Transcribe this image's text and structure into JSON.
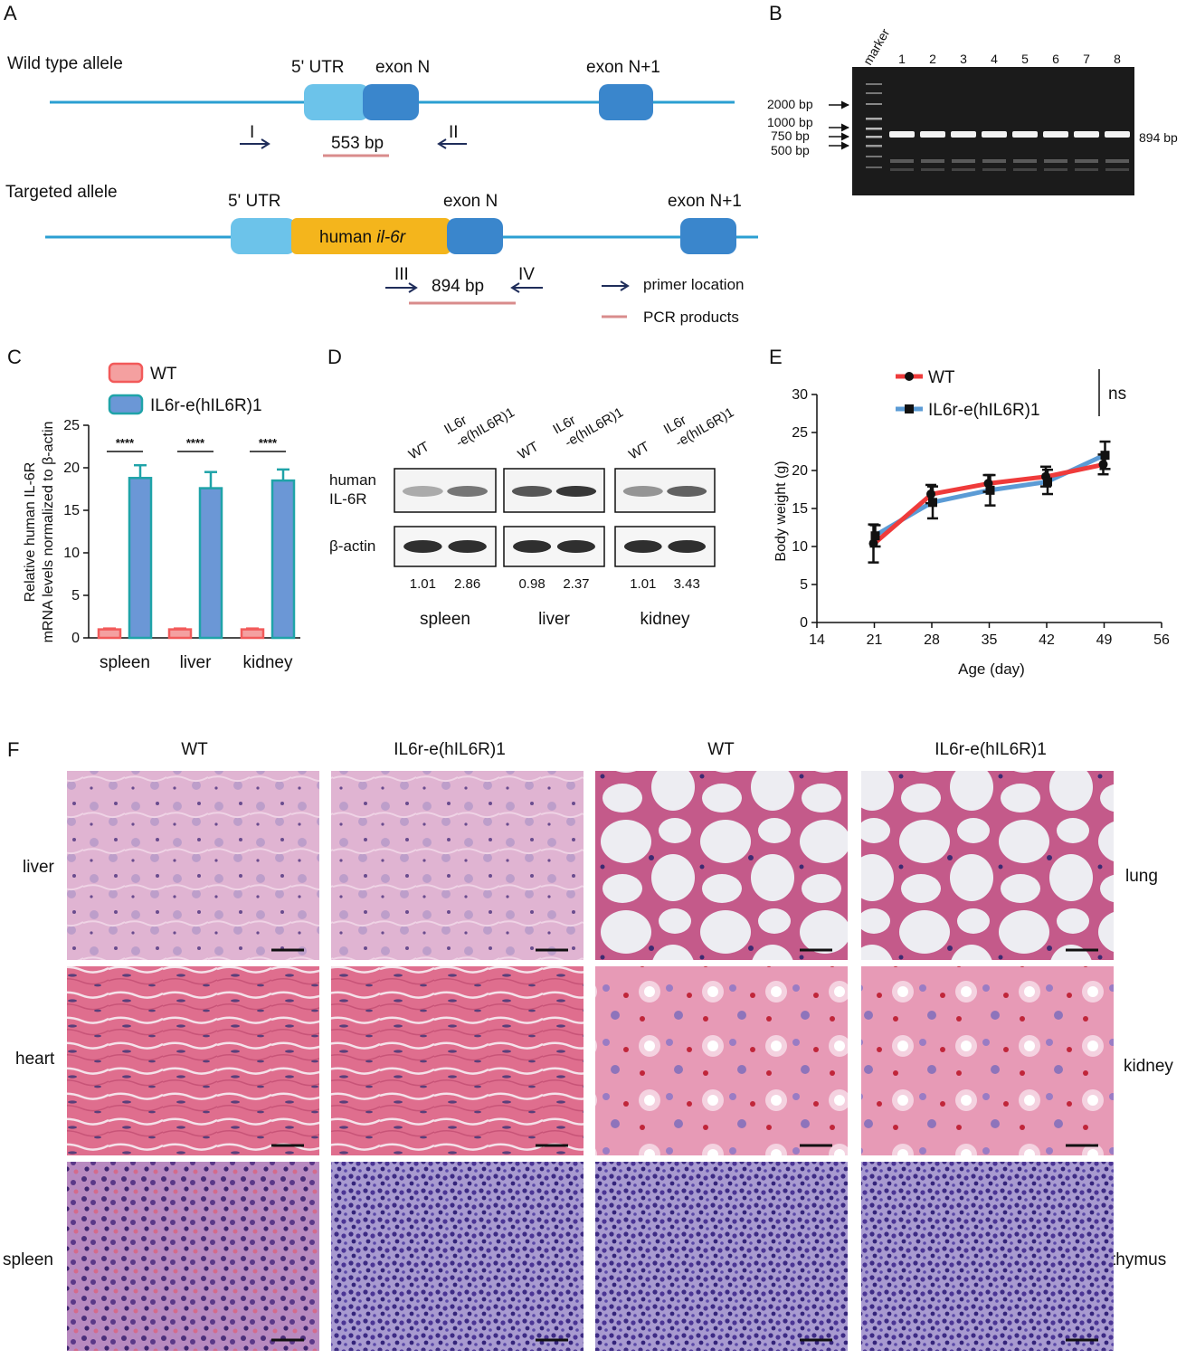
{
  "panels": {
    "A": "A",
    "B": "B",
    "C": "C",
    "D": "D",
    "E": "E",
    "F": "F"
  },
  "panelA": {
    "wt_title": "Wild type allele",
    "tg_title": "Targeted allele",
    "utr": "5' UTR",
    "exonN": "exon N",
    "exonN1": "exon N+1",
    "human_pre": "human ",
    "human_gene": "il-6r",
    "primer_I": "I",
    "primer_II": "II",
    "primer_III": "III",
    "primer_IV": "IV",
    "product_wt": "553 bp",
    "product_tg": "894 bp",
    "legend_primer": "primer location",
    "legend_pcr": "PCR products",
    "colors": {
      "backbone": "#2b9fd2",
      "utr": "#6cc3ea",
      "exon": "#3a86cc",
      "human": "#f4b51c",
      "pcr": "#d98c8c",
      "arrow": "#1f2d5a"
    }
  },
  "panelB": {
    "marker": "marker",
    "lanes": [
      "1",
      "2",
      "3",
      "4",
      "5",
      "6",
      "7",
      "8"
    ],
    "sizes": [
      "2000 bp",
      "1000 bp",
      "750 bp",
      "500 bp"
    ],
    "band": "894 bp"
  },
  "panelD": {
    "row_human": [
      "human",
      "IL-6R"
    ],
    "row_actin": "β-actin",
    "groups": [
      {
        "tissue": "spleen",
        "lanes": [
          [
            "WT"
          ],
          [
            "IL6r",
            "-e(hIL6R)1"
          ]
        ],
        "ratios": [
          "1.01",
          "2.86"
        ]
      },
      {
        "tissue": "liver",
        "lanes": [
          [
            "WT"
          ],
          [
            "IL6r",
            "-e(hIL6R)1"
          ]
        ],
        "ratios": [
          "0.98",
          "2.37"
        ]
      },
      {
        "tissue": "kidney",
        "lanes": [
          [
            "WT"
          ],
          [
            "IL6r",
            "-e(hIL6R)1"
          ]
        ],
        "ratios": [
          "1.01",
          "3.43"
        ]
      }
    ]
  },
  "panelF": {
    "cols": [
      "WT",
      "IL6r-e(hIL6R)1",
      "WT",
      "IL6r-e(hIL6R)1"
    ],
    "left_rows": [
      "liver",
      "heart",
      "spleen"
    ],
    "right_rows": [
      "lung",
      "kidney",
      "thymus"
    ]
  },
  "chart_data": [
    {
      "type": "bar",
      "panel": "C",
      "categories": [
        "spleen",
        "liver",
        "kidney"
      ],
      "series": [
        {
          "name": "WT",
          "values": [
            1.0,
            1.0,
            1.0
          ],
          "errors": [
            0.1,
            0.1,
            0.1
          ],
          "color": "#f25a5a"
        },
        {
          "name": "IL6r-e(hIL6R)1",
          "values": [
            18.8,
            17.6,
            18.5
          ],
          "errors": [
            1.5,
            1.9,
            1.3
          ],
          "color": "#6b97d6"
        }
      ],
      "significance": [
        "****",
        "****",
        "****"
      ],
      "ylabel": [
        "Relative human IL-6R",
        "mRNA levels normalized to β-actin"
      ],
      "ylim": [
        0,
        25
      ],
      "yticks": [
        0,
        5,
        10,
        15,
        20,
        25
      ],
      "legend": "top-left"
    },
    {
      "type": "line",
      "panel": "E",
      "x": [
        21,
        28,
        35,
        42,
        49
      ],
      "series": [
        {
          "name": "WT",
          "values": [
            10.4,
            16.9,
            18.3,
            19.2,
            20.8
          ],
          "errors": [
            2.5,
            1.2,
            1.1,
            1.3,
            1.3
          ],
          "color": "#ef3b3b"
        },
        {
          "name": "IL6r-e(hIL6R)1",
          "values": [
            11.4,
            15.8,
            17.4,
            18.5,
            22.0
          ],
          "errors": [
            1.4,
            2.1,
            2.0,
            1.6,
            1.8
          ],
          "color": "#5b9bd5"
        }
      ],
      "xlabel": "Age (day)",
      "ylabel": "Body weight (g)",
      "xlim": [
        14,
        56
      ],
      "xticks": [
        14,
        21,
        28,
        35,
        42,
        49,
        56
      ],
      "ylim": [
        0,
        30
      ],
      "yticks": [
        0,
        5,
        10,
        15,
        20,
        25,
        30
      ],
      "annotation": "ns",
      "legend": "top"
    }
  ]
}
